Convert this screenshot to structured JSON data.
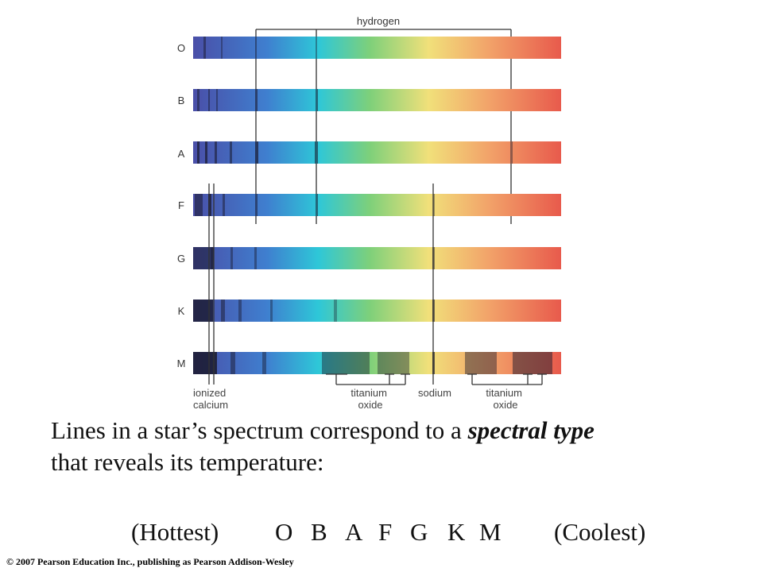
{
  "diagram": {
    "spectral_types": [
      "O",
      "B",
      "A",
      "F",
      "G",
      "K",
      "M"
    ],
    "line_labels": {
      "hydrogen": "hydrogen",
      "ionized_calcium": [
        "ionized",
        "calcium"
      ],
      "titanium_oxide_1": [
        "titanium",
        "oxide"
      ],
      "sodium": "sodium",
      "titanium_oxide_2": [
        "titanium",
        "oxide"
      ]
    },
    "colors": {
      "violet": "#4a4fa8",
      "blue": "#3f7fcf",
      "cyan": "#2ec7d8",
      "green": "#7ed07a",
      "yellow": "#f1e07a",
      "orange": "#f2a46a",
      "red": "#e85a4c",
      "marker": "#333333"
    }
  },
  "caption": {
    "line1_pre": "Lines in a star’s spectrum correspond to a ",
    "line1_em": "spectral type",
    "line2": "that reveals its temperature:"
  },
  "sequence": {
    "hottest": "(Hottest)",
    "types": [
      "O",
      "B",
      "A",
      "F",
      "G",
      "K",
      "M"
    ],
    "coolest": "(Coolest)"
  },
  "copyright": "© 2007 Pearson Education Inc., publishing as Pearson Addison-Wesley"
}
